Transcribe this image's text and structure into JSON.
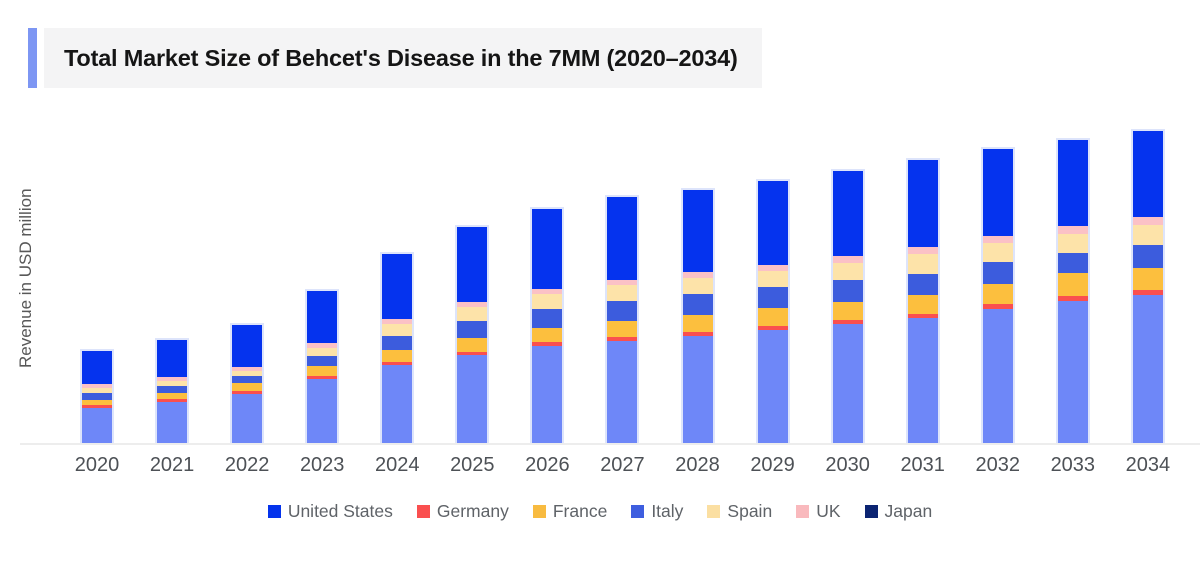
{
  "header": {
    "title": "Total Market Size of Behcet's Disease in the 7MM (2020–2034)"
  },
  "colors": {
    "title_accent": "#7d96f3",
    "title_box_bg": "#f4f4f5",
    "axis_line": "#ededed",
    "axis_text": "#4d5156",
    "legend_text": "#5f6368",
    "bar_border": "#dde4fb"
  },
  "chart_data": {
    "type": "bar",
    "stacked": true,
    "title": "Total Market Size of Behcet's Disease in the 7MM (2020–2034)",
    "xlabel": "",
    "ylabel": "Revenue in USD million",
    "units": "USD million (y-axis unlabeled; values estimated from bar heights)",
    "grid": false,
    "ylim": [
      0,
      330
    ],
    "categories": [
      "2020",
      "2021",
      "2022",
      "2023",
      "2024",
      "2025",
      "2026",
      "2027",
      "2028",
      "2029",
      "2030",
      "2031",
      "2032",
      "2033",
      "2034"
    ],
    "stack_order_bottom_to_top": [
      "Japan",
      "Germany",
      "France",
      "Italy",
      "Spain",
      "UK",
      "United States"
    ],
    "series": [
      {
        "name": "Japan",
        "color": "#6e87f8",
        "values": [
          35,
          41,
          49,
          64,
          78,
          88,
          97,
          102,
          107,
          113,
          119,
          125,
          134,
          142,
          148
        ]
      },
      {
        "name": "Germany",
        "color": "#fa4f4f",
        "values": [
          3,
          3,
          3,
          3,
          3,
          3,
          4,
          4,
          4,
          4,
          4,
          4,
          5,
          5,
          5
        ]
      },
      {
        "name": "France",
        "color": "#fcbf3e",
        "values": [
          5,
          6,
          8,
          10,
          12,
          14,
          14,
          16,
          17,
          18,
          18,
          19,
          20,
          23,
          22
        ]
      },
      {
        "name": "Italy",
        "color": "#3c5cdd",
        "values": [
          7,
          7,
          7,
          10,
          14,
          17,
          19,
          20,
          21,
          21,
          22,
          21,
          22,
          20,
          23
        ]
      },
      {
        "name": "Spain",
        "color": "#fde3a9",
        "values": [
          5,
          5,
          5,
          8,
          12,
          14,
          15,
          16,
          16,
          16,
          17,
          20,
          19,
          19,
          20
        ]
      },
      {
        "name": "UK",
        "color": "#fbc1c6",
        "values": [
          4,
          4,
          4,
          5,
          5,
          5,
          5,
          5,
          6,
          6,
          7,
          7,
          7,
          8,
          8
        ]
      },
      {
        "name": "United States",
        "color": "#0533ee",
        "values": [
          33,
          37,
          42,
          52,
          65,
          75,
          80,
          83,
          82,
          84,
          85,
          87,
          87,
          86,
          86
        ]
      }
    ],
    "totals": [
      92,
      103,
      118,
      152,
      189,
      216,
      234,
      246,
      253,
      262,
      272,
      283,
      294,
      303,
      312
    ],
    "legend": {
      "position": "bottom",
      "items": [
        {
          "label": "United States",
          "color": "#0433ec"
        },
        {
          "label": "Germany",
          "color": "#fa4f4f"
        },
        {
          "label": "France",
          "color": "#f8bb40"
        },
        {
          "label": "Italy",
          "color": "#3e5edf"
        },
        {
          "label": "Spain",
          "color": "#fbdfa2"
        },
        {
          "label": "UK",
          "color": "#f9b9bd"
        },
        {
          "label": "Japan",
          "color": "#0b2472"
        }
      ]
    }
  }
}
